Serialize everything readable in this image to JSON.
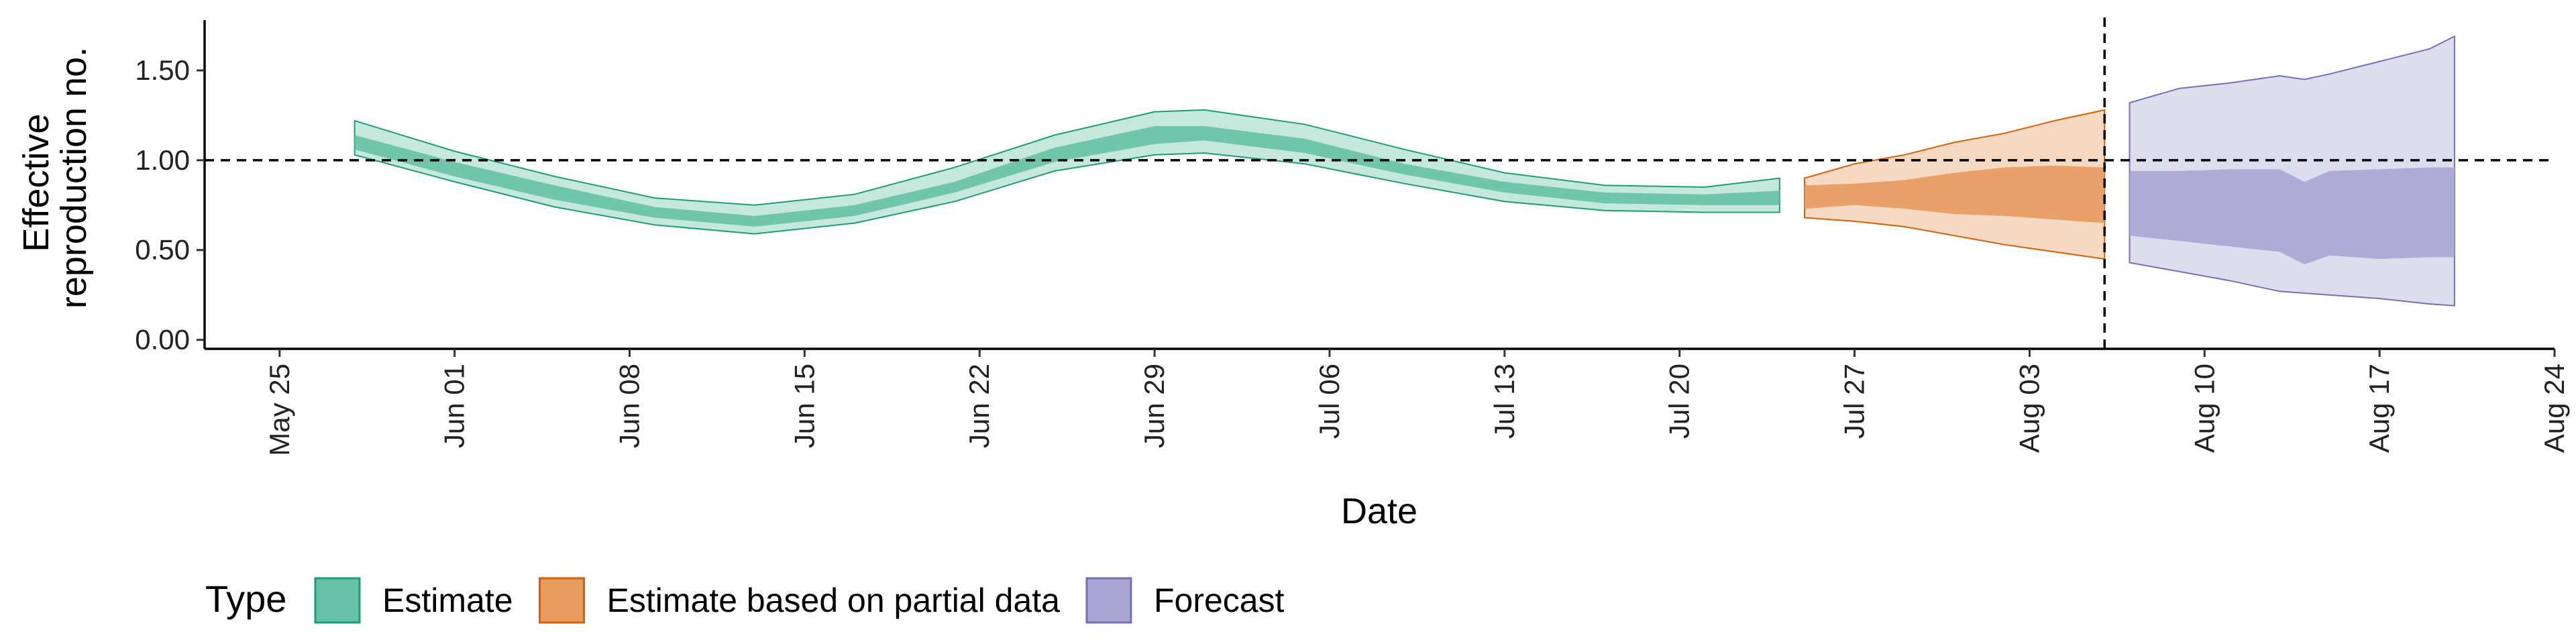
{
  "chart_data": {
    "type": "area",
    "title": "",
    "xlabel": "Date",
    "ylabel_lines": [
      "Effective",
      "reproduction no."
    ],
    "ylim": [
      -0.05,
      1.78
    ],
    "xlim": [
      "2020-05-22",
      "2020-08-24"
    ],
    "y_ticks": [
      0.0,
      0.5,
      1.0,
      1.5
    ],
    "y_tick_labels": [
      "0.00",
      "0.50",
      "1.00",
      "1.50"
    ],
    "x_ticks": [
      "2020-05-25",
      "2020-06-01",
      "2020-06-08",
      "2020-06-15",
      "2020-06-22",
      "2020-06-29",
      "2020-07-06",
      "2020-07-13",
      "2020-07-20",
      "2020-07-27",
      "2020-08-03",
      "2020-08-10",
      "2020-08-17",
      "2020-08-24"
    ],
    "x_tick_labels": [
      "May 25",
      "Jun 01",
      "Jun 08",
      "Jun 15",
      "Jun 22",
      "Jun 29",
      "Jul 06",
      "Jul 13",
      "Jul 20",
      "Jul 27",
      "Aug 03",
      "Aug 10",
      "Aug 17",
      "Aug 24"
    ],
    "reference_hline": 1.0,
    "reference_vline": "2020-08-06",
    "legend_title": "Type",
    "legend_position": "bottom",
    "series": [
      {
        "name": "Estimate",
        "fill": "#66c2a5",
        "line": "#1b9e77",
        "x": [
          "2020-05-28",
          "2020-06-01",
          "2020-06-05",
          "2020-06-09",
          "2020-06-13",
          "2020-06-17",
          "2020-06-21",
          "2020-06-25",
          "2020-06-29",
          "2020-07-01",
          "2020-07-05",
          "2020-07-09",
          "2020-07-13",
          "2020-07-17",
          "2020-07-21",
          "2020-07-24"
        ],
        "median": [
          1.1,
          0.95,
          0.82,
          0.71,
          0.66,
          0.72,
          0.85,
          1.03,
          1.14,
          1.15,
          1.08,
          0.95,
          0.85,
          0.79,
          0.78,
          0.79
        ],
        "lower_50": [
          1.06,
          0.91,
          0.78,
          0.68,
          0.63,
          0.69,
          0.82,
          0.99,
          1.09,
          1.11,
          1.04,
          0.92,
          0.82,
          0.76,
          0.75,
          0.75
        ],
        "upper_50": [
          1.14,
          0.99,
          0.86,
          0.74,
          0.69,
          0.75,
          0.88,
          1.07,
          1.19,
          1.19,
          1.12,
          0.98,
          0.88,
          0.82,
          0.81,
          0.83
        ],
        "lower_90": [
          1.03,
          0.88,
          0.74,
          0.64,
          0.59,
          0.65,
          0.77,
          0.94,
          1.03,
          1.04,
          0.98,
          0.87,
          0.77,
          0.72,
          0.71,
          0.71
        ],
        "upper_90": [
          1.22,
          1.05,
          0.91,
          0.79,
          0.75,
          0.81,
          0.96,
          1.14,
          1.27,
          1.28,
          1.2,
          1.06,
          0.93,
          0.86,
          0.85,
          0.9
        ]
      },
      {
        "name": "Estimate based on partial data",
        "fill": "#e89a5f",
        "line": "#d95f02",
        "x": [
          "2020-07-25",
          "2020-07-27",
          "2020-07-29",
          "2020-07-31",
          "2020-08-02",
          "2020-08-04",
          "2020-08-06"
        ],
        "median": [
          0.8,
          0.8,
          0.8,
          0.8,
          0.81,
          0.81,
          0.81
        ],
        "lower_50": [
          0.73,
          0.75,
          0.73,
          0.7,
          0.69,
          0.67,
          0.65
        ],
        "upper_50": [
          0.86,
          0.87,
          0.89,
          0.93,
          0.96,
          0.97,
          0.96
        ],
        "lower_90": [
          0.68,
          0.66,
          0.63,
          0.58,
          0.53,
          0.49,
          0.45
        ],
        "upper_90": [
          0.9,
          0.98,
          1.03,
          1.1,
          1.15,
          1.22,
          1.28
        ]
      },
      {
        "name": "Forecast",
        "fill": "#a9a5d3",
        "line": "#7570b3",
        "x": [
          "2020-08-07",
          "2020-08-09",
          "2020-08-11",
          "2020-08-13",
          "2020-08-14",
          "2020-08-15",
          "2020-08-17",
          "2020-08-19",
          "2020-08-20"
        ],
        "median": [
          0.7,
          0.7,
          0.71,
          0.7,
          0.66,
          0.7,
          0.7,
          0.71,
          0.71
        ],
        "lower_50": [
          0.58,
          0.55,
          0.52,
          0.49,
          0.42,
          0.47,
          0.45,
          0.46,
          0.46
        ],
        "upper_50": [
          0.94,
          0.94,
          0.95,
          0.95,
          0.88,
          0.94,
          0.95,
          0.96,
          0.96
        ],
        "lower_90": [
          0.43,
          0.38,
          0.33,
          0.27,
          0.26,
          0.25,
          0.23,
          0.2,
          0.19
        ],
        "upper_90": [
          1.32,
          1.4,
          1.43,
          1.47,
          1.45,
          1.48,
          1.55,
          1.62,
          1.69
        ]
      }
    ]
  }
}
